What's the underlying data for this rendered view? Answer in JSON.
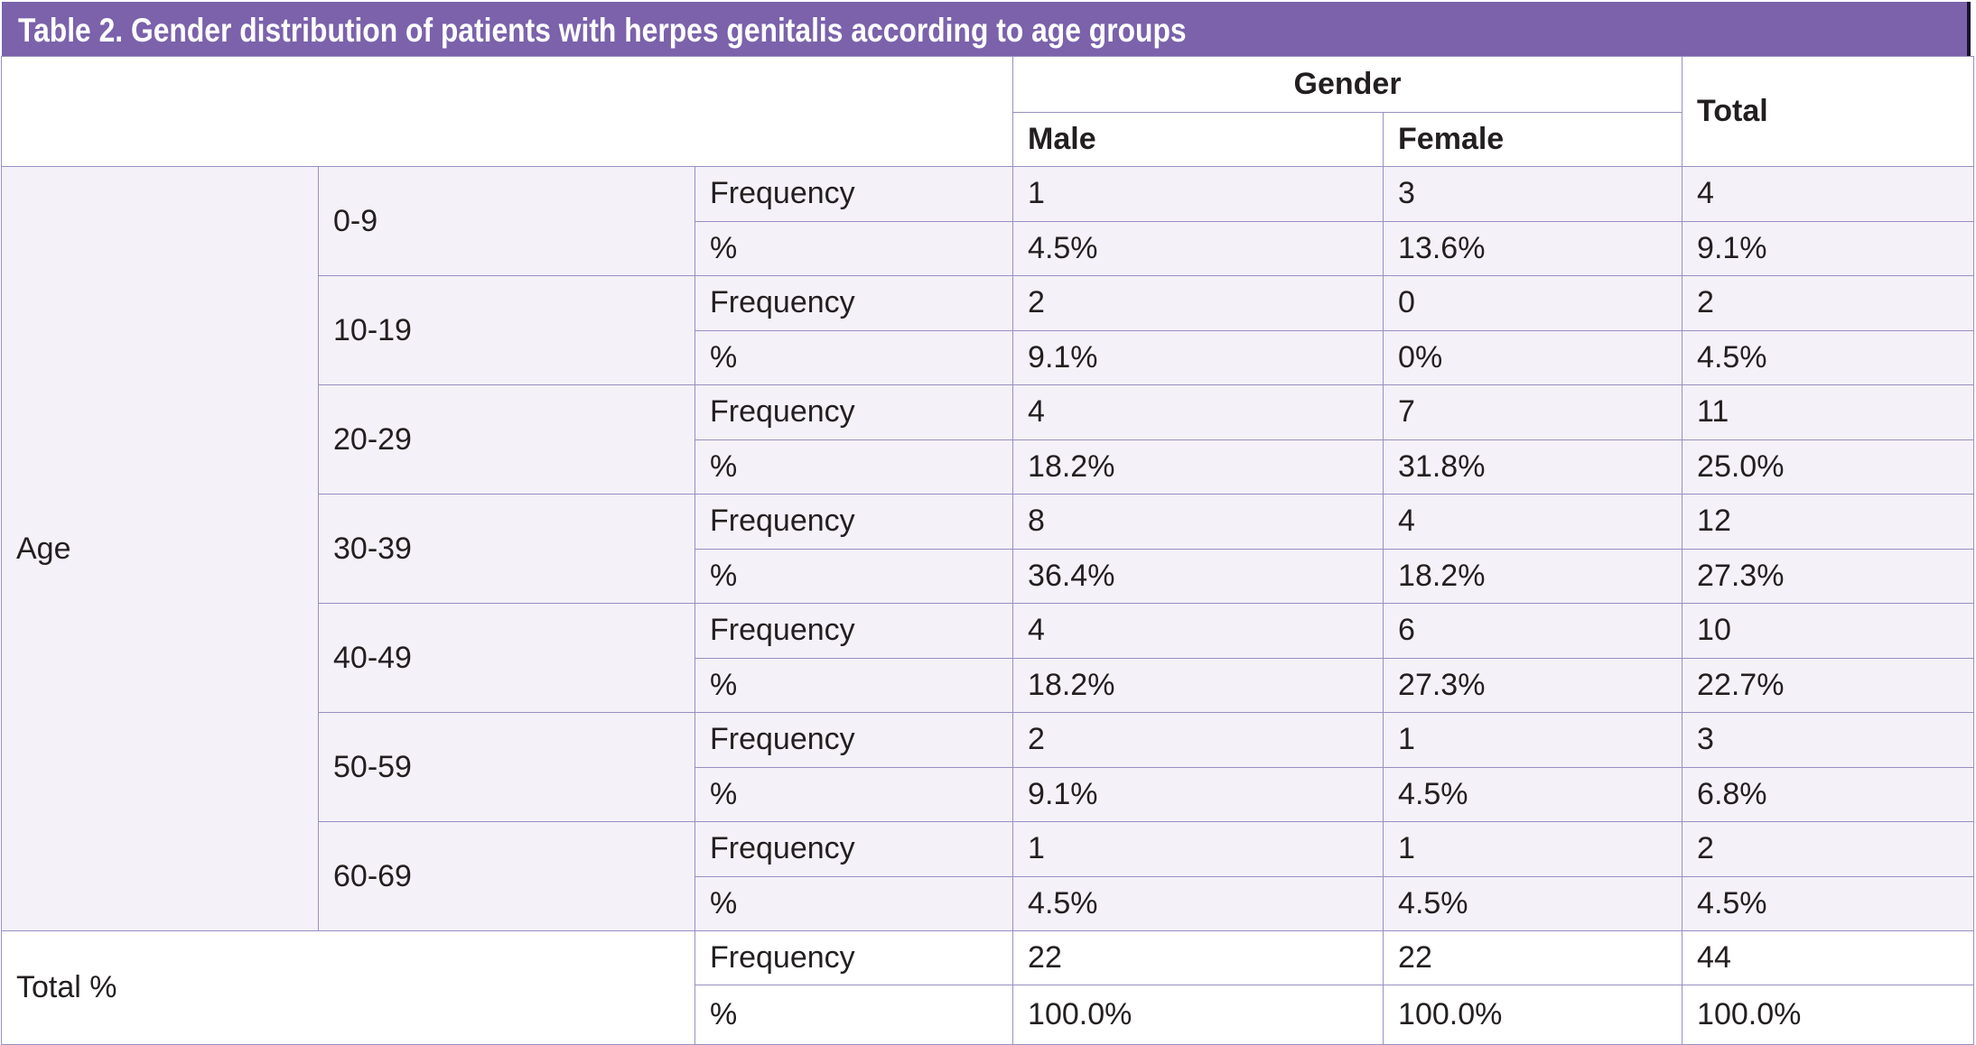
{
  "title": "Table 2. Gender distribution of patients with herpes genitalis according to age groups",
  "header": {
    "gender": "Gender",
    "male": "Male",
    "female": "Female",
    "total": "Total"
  },
  "age_label": "Age",
  "total_label": "Total %",
  "groups": [
    {
      "age": "0-9",
      "freq": [
        "1",
        "3",
        "4"
      ],
      "pct": [
        "4.5%",
        "13.6%",
        "9.1%"
      ]
    },
    {
      "age": "10-19",
      "freq": [
        "2",
        "0",
        "2"
      ],
      "pct": [
        "9.1%",
        "0%",
        "4.5%"
      ]
    },
    {
      "age": "20-29",
      "freq": [
        "4",
        "7",
        "11"
      ],
      "pct": [
        "18.2%",
        "31.8%",
        "25.0%"
      ]
    },
    {
      "age": "30-39",
      "freq": [
        "8",
        "4",
        "12"
      ],
      "pct": [
        "36.4%",
        "18.2%",
        "27.3%"
      ]
    },
    {
      "age": "40-49",
      "freq": [
        "4",
        "6",
        "10"
      ],
      "pct": [
        "18.2%",
        "27.3%",
        "22.7%"
      ]
    },
    {
      "age": "50-59",
      "freq": [
        "2",
        "1",
        "3"
      ],
      "pct": [
        "9.1%",
        "4.5%",
        "6.8%"
      ]
    },
    {
      "age": "60-69",
      "freq": [
        "1",
        "1",
        "2"
      ],
      "pct": [
        "4.5%",
        "4.5%",
        "4.5%"
      ]
    }
  ],
  "totals": {
    "freq": [
      "22",
      "22",
      "44"
    ],
    "pct": [
      "100.0%",
      "100.0%",
      "100.0%"
    ]
  },
  "freq_label": "Frequency",
  "pct_label": "%",
  "colors": {
    "title_bg": "#7b62ab",
    "row_bg": "#f4f1f8",
    "border": "#9a8fc2"
  }
}
